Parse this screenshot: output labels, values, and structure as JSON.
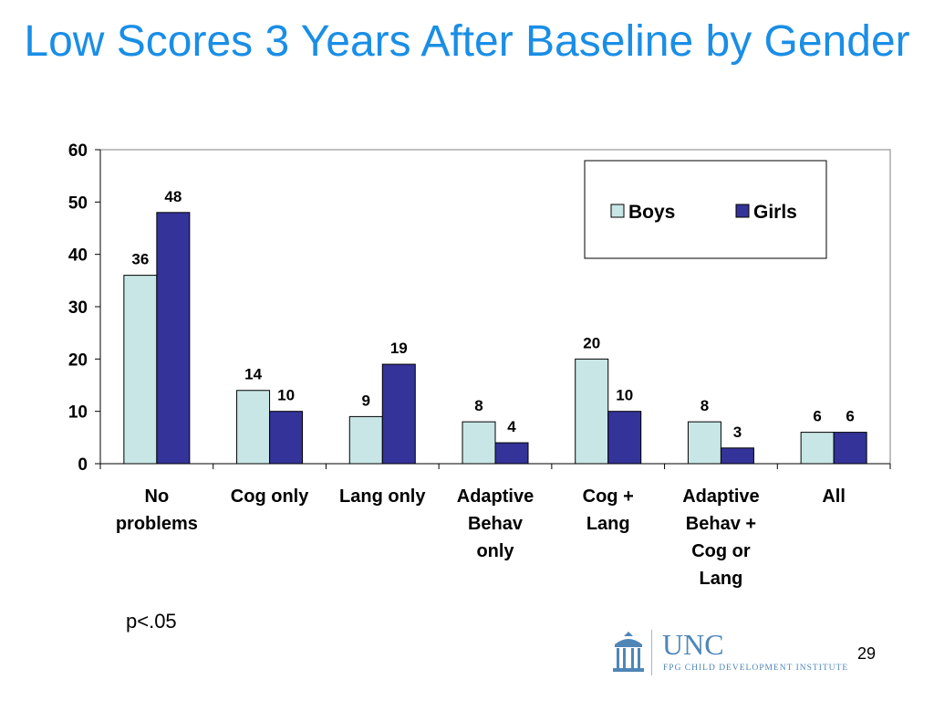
{
  "slide": {
    "title": "Low Scores 3 Years After Baseline by Gender",
    "note": "p<.05",
    "page_number": "29"
  },
  "logo": {
    "name": "UNC",
    "subtitle": "FPG CHILD DEVELOPMENT INSTITUTE"
  },
  "colors": {
    "title": "#1a8ee6",
    "boys": "#c8e6e6",
    "girls": "#343399",
    "logo": "#4f86b8"
  },
  "chart_data": {
    "type": "bar",
    "categories": [
      [
        "No",
        "problems"
      ],
      [
        "Cog only"
      ],
      [
        "Lang only"
      ],
      [
        "Adaptive",
        "Behav",
        "only"
      ],
      [
        "Cog +",
        "Lang"
      ],
      [
        "Adaptive",
        "Behav +",
        "Cog or",
        "Lang"
      ],
      [
        "All"
      ]
    ],
    "series": [
      {
        "name": "Boys",
        "values": [
          36,
          14,
          9,
          8,
          20,
          8,
          6
        ],
        "color": "#c8e6e6"
      },
      {
        "name": "Girls",
        "values": [
          48,
          10,
          19,
          4,
          10,
          3,
          6
        ],
        "color": "#343399"
      }
    ],
    "ylim": [
      0,
      60
    ],
    "yticks": [
      0,
      10,
      20,
      30,
      40,
      50,
      60
    ],
    "grid": false,
    "legend": "top-right",
    "data_labels": true
  }
}
